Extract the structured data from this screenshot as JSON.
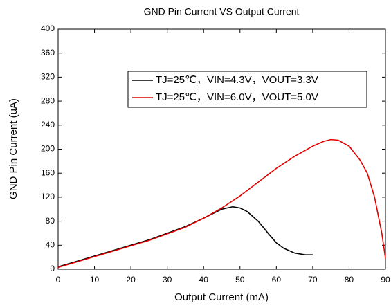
{
  "chart_data": {
    "type": "line",
    "title": "GND Pin Current VS Output Current",
    "x_label": "Output Current (mA)",
    "y_label": "GND Pin Current (uA)",
    "series": [
      {
        "name": "TJ=25℃，VIN=4.3V，VOUT=3.3V",
        "color": "#000000",
        "x": [
          0,
          5,
          10,
          15,
          20,
          25,
          30,
          35,
          40,
          43,
          45,
          48,
          50,
          52,
          55,
          58,
          60,
          62,
          65,
          68,
          70
        ],
        "values": [
          4,
          13,
          22,
          31,
          40,
          49,
          60,
          71,
          85,
          94,
          100,
          104,
          102,
          96,
          80,
          58,
          44,
          35,
          27,
          24,
          24
        ]
      },
      {
        "name": "TJ=25℃，VIN=6.0V，VOUT=5.0V",
        "color": "#e00000",
        "x": [
          0,
          5,
          10,
          15,
          20,
          25,
          30,
          35,
          40,
          45,
          50,
          55,
          60,
          65,
          70,
          73,
          75,
          77,
          80,
          83,
          85,
          87,
          89,
          90
        ],
        "values": [
          3,
          12,
          21,
          30,
          39,
          48,
          59,
          70,
          85,
          102,
          122,
          145,
          168,
          188,
          205,
          213,
          216,
          215,
          205,
          182,
          160,
          120,
          60,
          18
        ]
      }
    ],
    "xlim": [
      0,
      90
    ],
    "xticks": [
      0,
      10,
      20,
      30,
      40,
      50,
      60,
      70,
      80,
      90
    ],
    "ylim": [
      0,
      400
    ],
    "yticks": [
      0,
      40,
      80,
      120,
      160,
      200,
      240,
      280,
      320,
      360,
      400
    ],
    "legend": "upper right"
  }
}
